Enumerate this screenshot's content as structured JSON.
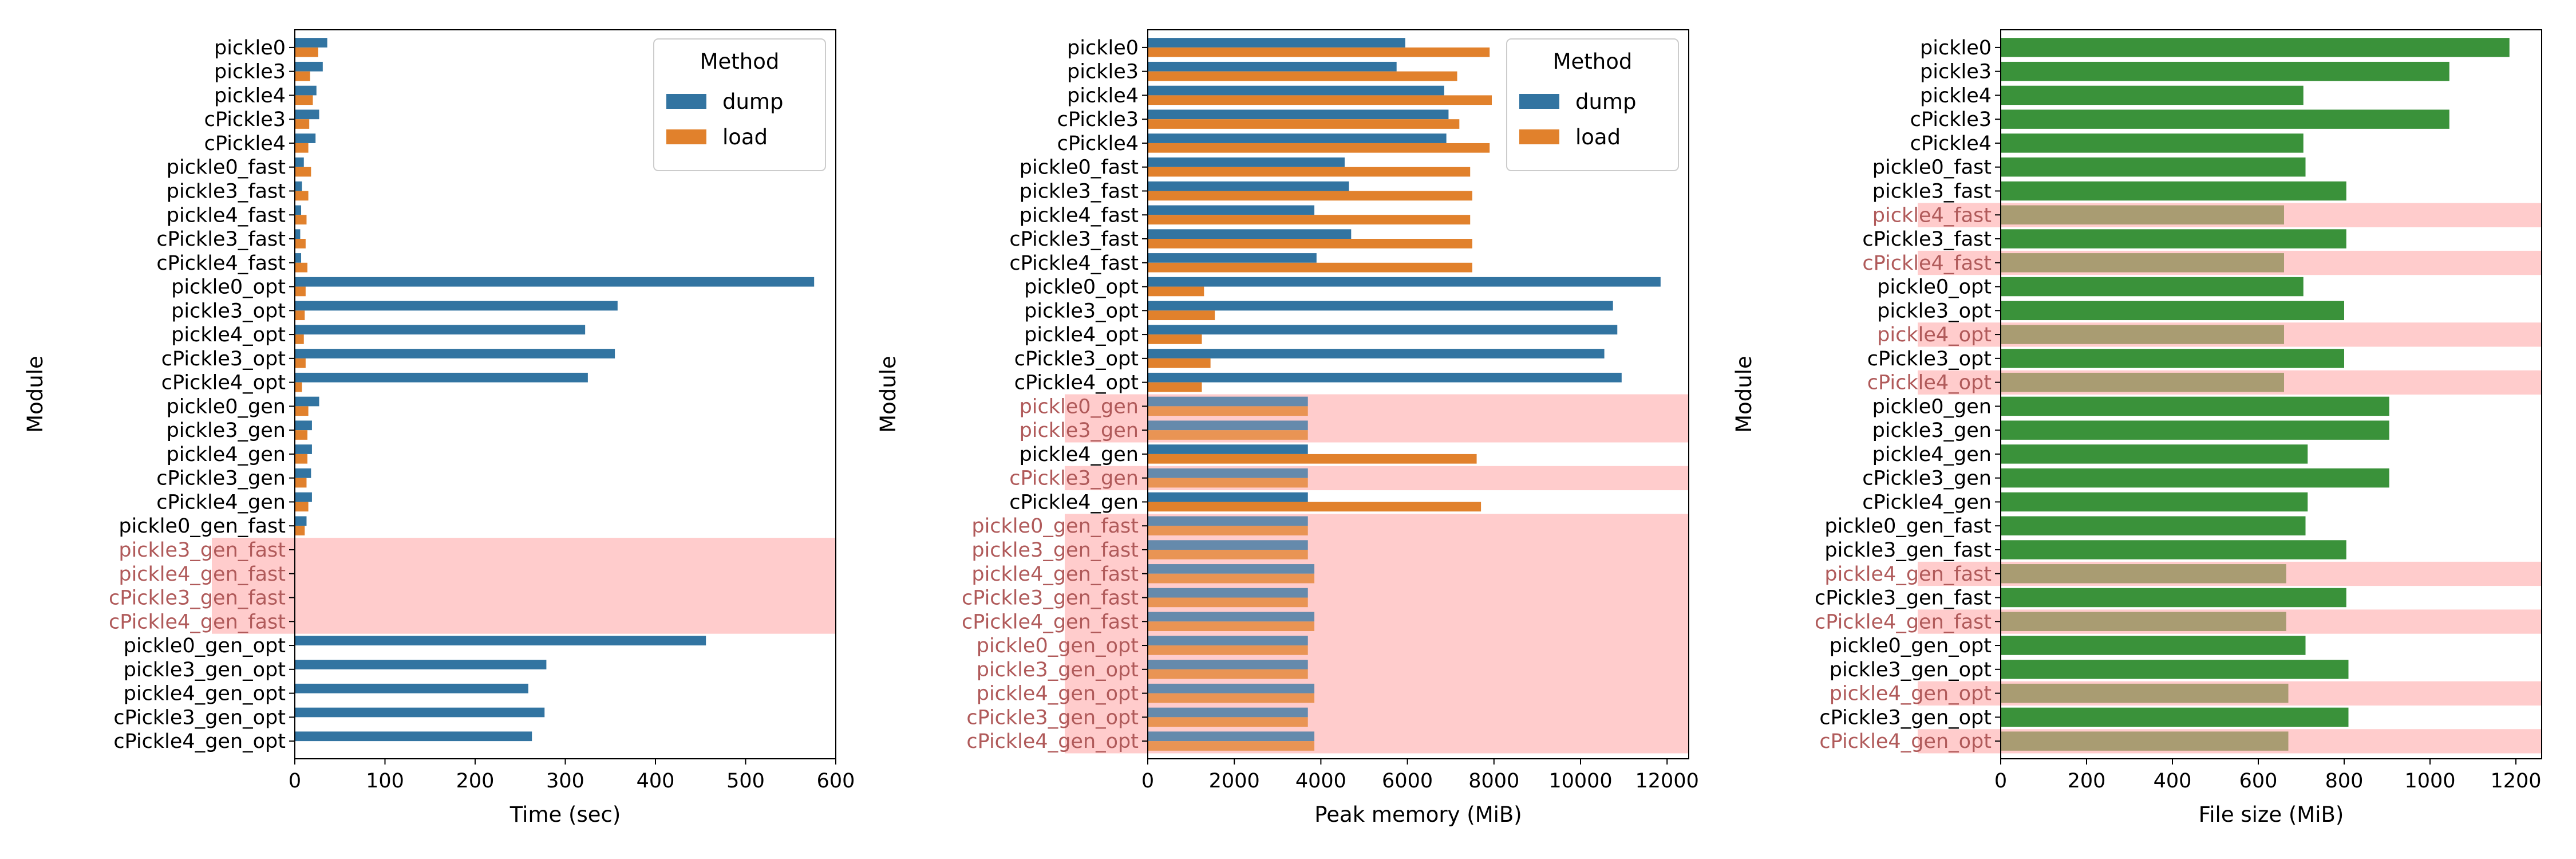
{
  "modules": [
    "pickle0",
    "pickle3",
    "pickle4",
    "cPickle3",
    "cPickle4",
    "pickle0_fast",
    "pickle3_fast",
    "pickle4_fast",
    "cPickle3_fast",
    "cPickle4_fast",
    "pickle0_opt",
    "pickle3_opt",
    "pickle4_opt",
    "cPickle3_opt",
    "cPickle4_opt",
    "pickle0_gen",
    "pickle3_gen",
    "pickle4_gen",
    "cPickle3_gen",
    "cPickle4_gen",
    "pickle0_gen_fast",
    "pickle3_gen_fast",
    "pickle4_gen_fast",
    "cPickle3_gen_fast",
    "cPickle4_gen_fast",
    "pickle0_gen_opt",
    "pickle3_gen_opt",
    "pickle4_gen_opt",
    "cPickle3_gen_opt",
    "cPickle4_gen_opt"
  ],
  "colors": {
    "dump": "#3274a1",
    "load": "#e1812c",
    "filesize": "#3a923a",
    "filesize_highlight": "#a99c72",
    "highlight_band": "#ffcccc",
    "highlight_text": "#b05a5a"
  },
  "chart_data": [
    {
      "type": "bar",
      "orientation": "horizontal",
      "xlabel": "Time (sec)",
      "ylabel": "Module",
      "xlim": [
        0,
        600
      ],
      "xticks": [
        0,
        100,
        200,
        300,
        400,
        500,
        600
      ],
      "legend": {
        "title": "Method",
        "placement": "top-right",
        "entries": [
          "dump",
          "load"
        ]
      },
      "series": [
        {
          "name": "dump",
          "values": [
            36,
            31,
            24,
            27,
            23,
            10,
            8,
            7,
            6,
            7,
            576,
            358,
            322,
            355,
            325,
            27,
            19,
            19,
            18,
            19,
            13,
            0,
            0,
            0,
            0,
            456,
            279,
            259,
            277,
            263
          ]
        },
        {
          "name": "load",
          "values": [
            26,
            17,
            20,
            16,
            15,
            18,
            15,
            13,
            12,
            14,
            12,
            11,
            10,
            12,
            8,
            15,
            14,
            14,
            13,
            15,
            11,
            0,
            0,
            0,
            0,
            0,
            0,
            0,
            0,
            0
          ]
        }
      ],
      "highlighted_modules": [
        "pickle3_gen_fast",
        "pickle4_gen_fast",
        "cPickle3_gen_fast",
        "cPickle4_gen_fast"
      ]
    },
    {
      "type": "bar",
      "orientation": "horizontal",
      "xlabel": "Peak memory (MiB)",
      "ylabel": "Module",
      "xlim": [
        0,
        12500
      ],
      "xticks": [
        0,
        2000,
        4000,
        6000,
        8000,
        10000,
        12000
      ],
      "legend": {
        "title": "Method",
        "placement": "top-right",
        "entries": [
          "dump",
          "load"
        ]
      },
      "series": [
        {
          "name": "dump",
          "values": [
            5950,
            5750,
            6850,
            6950,
            6900,
            4550,
            4650,
            3850,
            4700,
            3900,
            11850,
            10750,
            10850,
            10550,
            10950,
            3700,
            3700,
            3700,
            3700,
            3700,
            3700,
            3700,
            3850,
            3700,
            3850,
            3700,
            3700,
            3850,
            3700,
            3850
          ]
        },
        {
          "name": "load",
          "values": [
            7900,
            7150,
            7950,
            7200,
            7900,
            7450,
            7500,
            7450,
            7500,
            7500,
            1300,
            1550,
            1250,
            1450,
            1250,
            3700,
            3700,
            7600,
            3700,
            7700,
            3700,
            3700,
            3850,
            3700,
            3850,
            3700,
            3700,
            3850,
            3700,
            3850
          ]
        }
      ],
      "highlighted_modules": [
        "pickle0_gen",
        "pickle3_gen",
        "cPickle3_gen",
        "pickle0_gen_fast",
        "pickle3_gen_fast",
        "pickle4_gen_fast",
        "cPickle3_gen_fast",
        "cPickle4_gen_fast",
        "pickle0_gen_opt",
        "pickle3_gen_opt",
        "pickle4_gen_opt",
        "cPickle3_gen_opt",
        "cPickle4_gen_opt"
      ]
    },
    {
      "type": "bar",
      "orientation": "horizontal",
      "xlabel": "File size (MiB)",
      "ylabel": "Module",
      "xlim": [
        0,
        1260
      ],
      "xticks": [
        0,
        200,
        400,
        600,
        800,
        1000,
        1200
      ],
      "series": [
        {
          "values": [
            1185,
            1045,
            705,
            1045,
            705,
            710,
            805,
            660,
            805,
            660,
            705,
            800,
            660,
            800,
            660,
            905,
            905,
            715,
            905,
            715,
            710,
            805,
            665,
            805,
            665,
            710,
            810,
            670,
            810,
            670
          ]
        }
      ],
      "highlighted_modules": [
        "pickle4_fast",
        "cPickle4_fast",
        "pickle4_opt",
        "cPickle4_opt",
        "pickle4_gen_fast",
        "cPickle4_gen_fast",
        "pickle4_gen_opt",
        "cPickle4_gen_opt"
      ]
    }
  ]
}
